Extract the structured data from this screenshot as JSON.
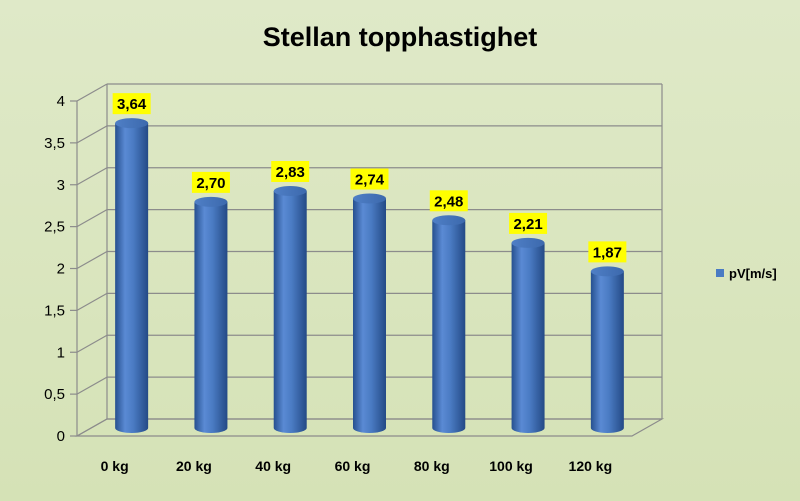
{
  "chart_data": {
    "type": "bar",
    "title": "Stellan topphastighet",
    "categories": [
      "0 kg",
      "20 kg",
      "40 kg",
      "60 kg",
      "80 kg",
      "100 kg",
      "120 kg"
    ],
    "series": [
      {
        "name": "pV[m/s]",
        "values": [
          3.64,
          2.7,
          2.83,
          2.74,
          2.48,
          2.21,
          1.87
        ],
        "data_labels": [
          "3,64",
          "2,70",
          "2,83",
          "2,74",
          "2,48",
          "2,21",
          "1,87"
        ]
      }
    ],
    "yticks": [
      "0",
      "0,5",
      "1",
      "1,5",
      "2",
      "2,5",
      "3",
      "3,5",
      "4"
    ],
    "ylim": [
      0,
      4
    ],
    "grid": true,
    "legend_position": "right",
    "colors": {
      "bar": "#4a7bc3",
      "label_bg": "#ffff00",
      "background": "#d8e4bc",
      "grid": "#8c8c8c"
    }
  }
}
